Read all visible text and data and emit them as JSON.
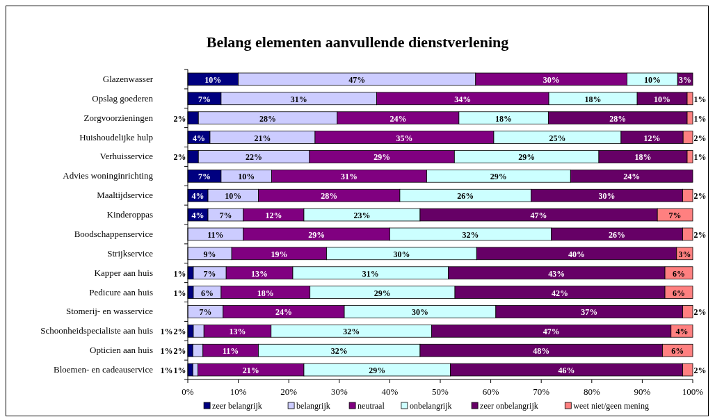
{
  "chart_data": {
    "type": "bar",
    "orientation": "horizontal",
    "stacked": true,
    "title": "Belang elementen aanvullende dienstverlening",
    "categories": [
      "Glazenwasser",
      "Opslag goederen",
      "Zorgvoorzieningen",
      "Huishoudelijke hulp",
      "Verhuisservice",
      "Advies woninginrichting",
      "Maaltijdservice",
      "Kinderoppas",
      "Boodschappenservice",
      "Strijkservice",
      "Kapper aan huis",
      "Pedicure aan huis",
      "Stomerij- en wasservice",
      "Schoonheidspecialiste aan huis",
      "Opticien aan huis",
      "Bloemen- en cadeauservice"
    ],
    "series": [
      {
        "name": "zeer belangrijk",
        "color": "#000080",
        "values": [
          10,
          6.6,
          2.1,
          4.4,
          2.1,
          6.6,
          4,
          4,
          null,
          null,
          1.1,
          1.1,
          null,
          1.1,
          1,
          1
        ],
        "value_labels": [
          "10%",
          "7%",
          "2%",
          "4%",
          "2%",
          "7%",
          "4%",
          "4%",
          null,
          null,
          "1%",
          "1%",
          null,
          "1%",
          "1%",
          "1%"
        ]
      },
      {
        "name": "belangrijk",
        "color": "#ccccff",
        "values": [
          47,
          30.8,
          27.5,
          20.8,
          22.0,
          10.0,
          10,
          7,
          11,
          8.7,
          6.5,
          5.5,
          7,
          2.1,
          2,
          1
        ],
        "value_labels": [
          "47%",
          "31%",
          "28%",
          "21%",
          "22%",
          "10%",
          "10%",
          "7%",
          "11%",
          "9%",
          "7%",
          "6%",
          "7%",
          "2%",
          "2%",
          "1%"
        ]
      },
      {
        "name": "neutraal",
        "color": "#800080",
        "values": [
          30,
          34.1,
          24.1,
          35.4,
          28.7,
          30.7,
          28,
          12,
          29,
          18.8,
          13.2,
          17.6,
          24,
          13.3,
          11,
          21
        ],
        "value_labels": [
          "30%",
          "34%",
          "24%",
          "35%",
          "29%",
          "31%",
          "28%",
          "12%",
          "29%",
          "19%",
          "13%",
          "18%",
          "24%",
          "13%",
          "11%",
          "21%"
        ]
      },
      {
        "name": "onbelangrijk",
        "color": "#ccffff",
        "values": [
          10,
          17.5,
          17.7,
          25.2,
          28.6,
          28.5,
          26,
          23,
          32,
          29.7,
          30.8,
          28.7,
          30,
          31.8,
          32,
          29
        ],
        "value_labels": [
          "10%",
          "18%",
          "18%",
          "25%",
          "29%",
          "29%",
          "26%",
          "23%",
          "32%",
          "30%",
          "31%",
          "29%",
          "30%",
          "32%",
          "32%",
          "29%"
        ]
      },
      {
        "name": "zeer onbelangrijk",
        "color": "#660066",
        "values": [
          3,
          9.9,
          27.5,
          12.3,
          17.5,
          24.2,
          30,
          47,
          26,
          39.6,
          42.9,
          41.6,
          37,
          47.4,
          48,
          46
        ],
        "value_labels": [
          "3%",
          "10%",
          "28%",
          "12%",
          "18%",
          "24%",
          "30%",
          "47%",
          "26%",
          "40%",
          "43%",
          "42%",
          "37%",
          "47%",
          "48%",
          "46%"
        ]
      },
      {
        "name": "weet niet/geen mening",
        "color": "#ff8080",
        "values": [
          null,
          1.1,
          1.1,
          1.9,
          1.1,
          null,
          2,
          7,
          2,
          3.2,
          5.5,
          5.5,
          2,
          4.3,
          6,
          2
        ],
        "value_labels": [
          null,
          "1%",
          "1%",
          "2%",
          "1%",
          null,
          "2%",
          "7%",
          "2%",
          "3%",
          "6%",
          "6%",
          "2%",
          "4%",
          "6%",
          "2%"
        ]
      }
    ],
    "xlim": [
      0,
      100
    ],
    "xticks": [
      {
        "value": 0,
        "label": "0%"
      },
      {
        "value": 10,
        "label": "10%"
      },
      {
        "value": 20,
        "label": "20%"
      },
      {
        "value": 30,
        "label": "30%"
      },
      {
        "value": 40,
        "label": "40%"
      },
      {
        "value": 50,
        "label": "50%"
      },
      {
        "value": 60,
        "label": "60%"
      },
      {
        "value": 70,
        "label": "70%"
      },
      {
        "value": 80,
        "label": "80%"
      },
      {
        "value": 90,
        "label": "90%"
      },
      {
        "value": 100,
        "label": "100%"
      }
    ],
    "legend": "bottom",
    "grid": false
  }
}
